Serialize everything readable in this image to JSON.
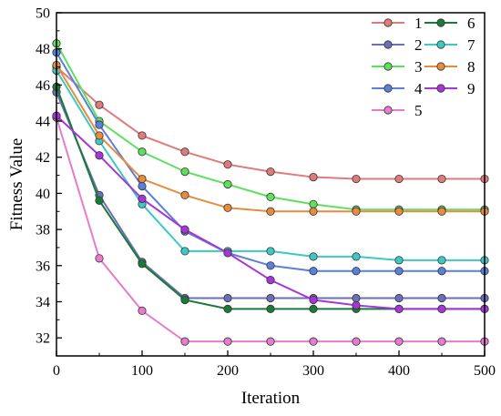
{
  "chart_data": {
    "type": "line",
    "xlabel": "Iteration",
    "ylabel": "Fitness Value",
    "xlim": [
      0,
      500
    ],
    "ylim": [
      31,
      50
    ],
    "xticks": [
      "0",
      "100",
      "200",
      "300",
      "400",
      "500"
    ],
    "yticks": [
      "32",
      "34",
      "36",
      "38",
      "40",
      "42",
      "44",
      "46",
      "48",
      "50"
    ],
    "grid": false,
    "legend_position": "top-right",
    "x": [
      0,
      50,
      100,
      150,
      200,
      250,
      300,
      350,
      400,
      450,
      500
    ],
    "series": [
      {
        "name": "1",
        "color": "#e07b7b",
        "values": [
          47.0,
          44.9,
          43.2,
          42.3,
          41.6,
          41.2,
          40.9,
          40.8,
          40.8,
          40.8,
          40.8
        ]
      },
      {
        "name": "2",
        "color": "#6b6fb8",
        "values": [
          45.6,
          39.9,
          36.2,
          34.2,
          34.2,
          34.2,
          34.2,
          34.2,
          34.2,
          34.2,
          34.2
        ]
      },
      {
        "name": "3",
        "color": "#5ee05e",
        "values": [
          48.3,
          44.0,
          42.3,
          41.2,
          40.5,
          39.8,
          39.4,
          39.1,
          39.1,
          39.1,
          39.1
        ]
      },
      {
        "name": "4",
        "color": "#5b7fdc",
        "values": [
          47.8,
          43.8,
          40.4,
          37.9,
          36.7,
          36.0,
          35.7,
          35.7,
          35.7,
          35.7,
          35.7
        ]
      },
      {
        "name": "5",
        "color": "#e77bcf",
        "values": [
          44.2,
          36.4,
          33.5,
          31.8,
          31.8,
          31.8,
          31.8,
          31.8,
          31.8,
          31.8,
          31.8
        ]
      },
      {
        "name": "6",
        "color": "#1a7a38",
        "values": [
          45.9,
          39.6,
          36.1,
          34.1,
          33.6,
          33.6,
          33.6,
          33.6,
          33.6,
          33.6,
          33.6
        ]
      },
      {
        "name": "7",
        "color": "#3dc8c4",
        "values": [
          46.8,
          42.9,
          39.4,
          36.8,
          36.8,
          36.8,
          36.5,
          36.5,
          36.3,
          36.3,
          36.3
        ]
      },
      {
        "name": "8",
        "color": "#e68c3c",
        "values": [
          47.1,
          43.2,
          40.8,
          39.9,
          39.2,
          39.0,
          39.0,
          39.0,
          39.0,
          39.0,
          39.0
        ]
      },
      {
        "name": "9",
        "color": "#a636d8",
        "values": [
          44.3,
          42.1,
          39.7,
          38.0,
          36.7,
          35.2,
          34.1,
          33.8,
          33.6,
          33.6,
          33.6
        ]
      }
    ]
  }
}
